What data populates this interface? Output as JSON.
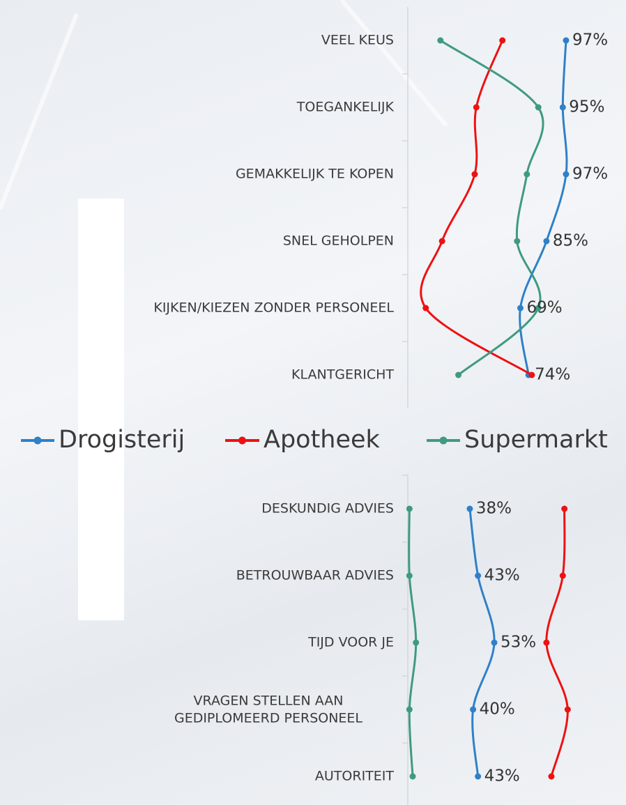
{
  "chart_data": [
    {
      "type": "line",
      "orientation": "horizontal",
      "categories": [
        "VEEL KEUS",
        "TOEGANKELIJK",
        "GEMAKKELIJK TE KOPEN",
        "SNEL GEHOLPEN",
        "KIJKEN/KIEZEN ZONDER PERSONEEL",
        "KLANTGERICHT"
      ],
      "xlim": [
        0,
        100
      ],
      "series": [
        {
          "name": "Drogisterij",
          "color": "#2f80c8",
          "values": [
            97,
            95,
            97,
            85,
            69,
            74
          ],
          "value_labels": [
            "97%",
            "95%",
            "97%",
            "85%",
            "69%",
            "74%"
          ]
        },
        {
          "name": "Apotheek",
          "color": "#ee1111",
          "values": [
            58,
            42,
            41,
            21,
            11,
            76
          ]
        },
        {
          "name": "Supermarkt",
          "color": "#3f9a80",
          "values": [
            20,
            80,
            73,
            67,
            80,
            31
          ]
        }
      ]
    },
    {
      "type": "line",
      "orientation": "horizontal",
      "categories": [
        "DESKUNDIG ADVIES",
        "BETROUWBAAR ADVIES",
        "TIJD VOOR JE",
        "VRAGEN STELLEN AAN GEDIPLOMEERD PERSONEEL",
        "AUTORITEIT"
      ],
      "xlim": [
        0,
        100
      ],
      "series": [
        {
          "color": "#2f80c8",
          "values": [
            38,
            43,
            53,
            40,
            43
          ],
          "value_labels": [
            "38%",
            "43%",
            "53%",
            "40%",
            "43%"
          ]
        },
        {
          "color": "#ee1111",
          "values": [
            96,
            95,
            85,
            98,
            88
          ]
        },
        {
          "color": "#3f9a80",
          "values": [
            1,
            1,
            5,
            1,
            3
          ]
        }
      ]
    }
  ]
}
